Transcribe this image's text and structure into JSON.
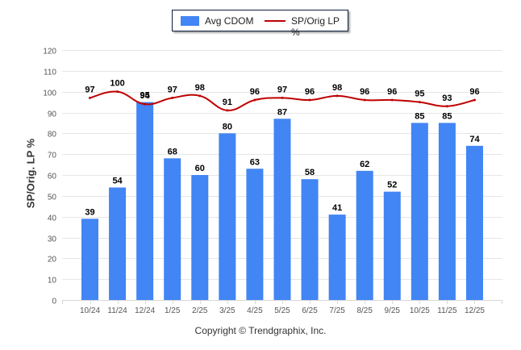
{
  "legend": {
    "bar_label": "Avg CDOM",
    "line_label": "SP/Orig LP %"
  },
  "copyright": "Copyright © Trendgraphix, Inc.",
  "colors": {
    "bar": "#4285f4",
    "line": "#c00000",
    "grid": "#e6e6e6",
    "tick_text": "#555555",
    "label_text": "#000000"
  },
  "chart_data": {
    "type": "bar",
    "title": "",
    "xlabel": "",
    "ylabel": "SP/Orig. LP %",
    "ylim": [
      0,
      120
    ],
    "yticks": [
      0,
      10,
      20,
      30,
      40,
      50,
      60,
      70,
      80,
      90,
      100,
      110,
      120
    ],
    "grid": true,
    "legend_position": "top-center",
    "categories": [
      "10/24",
      "11/24",
      "12/24",
      "1/25",
      "2/25",
      "3/25",
      "4/25",
      "5/25",
      "6/25",
      "7/25",
      "8/25",
      "9/25",
      "10/25",
      "11/25",
      "12/25"
    ],
    "series": [
      {
        "name": "Avg CDOM",
        "type": "bar",
        "values": [
          39,
          54,
          95,
          68,
          60,
          80,
          63,
          87,
          58,
          41,
          62,
          52,
          85,
          85,
          74
        ]
      },
      {
        "name": "SP/Orig LP %",
        "type": "line",
        "values": [
          97,
          100,
          94,
          97,
          98,
          91,
          96,
          97,
          96,
          98,
          96,
          96,
          95,
          93,
          96
        ]
      }
    ]
  }
}
